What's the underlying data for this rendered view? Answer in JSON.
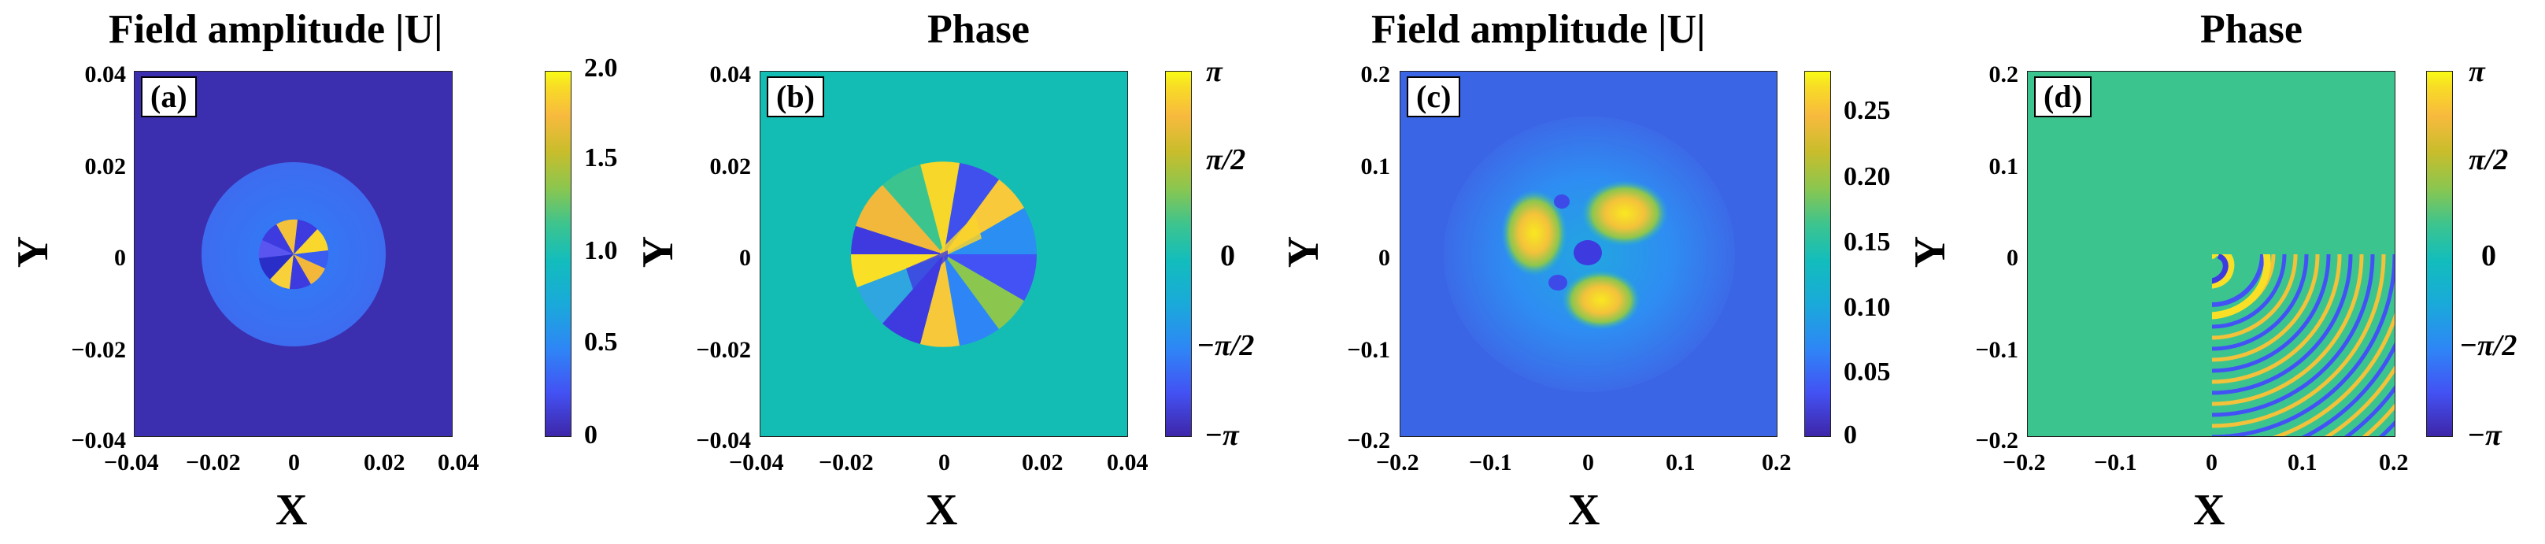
{
  "chart_data": [
    {
      "type": "heatmap",
      "panel": "(a)",
      "title": "Field amplitude |U|",
      "xlabel": "X",
      "ylabel": "Y",
      "xlim": [
        -0.04,
        0.04
      ],
      "ylim": [
        -0.04,
        0.04
      ],
      "xticks": [
        "−0.04",
        "−0.02",
        "0",
        "0.02",
        "0.04"
      ],
      "yticks": [
        "0.04",
        "0.02",
        "0",
        "−0.02",
        "−0.04"
      ],
      "colorbar": {
        "min": 0,
        "max": 2.0,
        "ticks": [
          "2.0",
          "1.5",
          "1.0",
          "0.5",
          "0"
        ]
      }
    },
    {
      "type": "heatmap",
      "panel": "(b)",
      "title": "Phase",
      "xlabel": "X",
      "ylabel": "Y",
      "xlim": [
        -0.04,
        0.04
      ],
      "ylim": [
        -0.04,
        0.04
      ],
      "xticks": [
        "−0.04",
        "−0.02",
        "0",
        "0.02",
        "0.04"
      ],
      "yticks": [
        "0.04",
        "0.02",
        "0",
        "−0.02",
        "−0.04"
      ],
      "colorbar": {
        "min": "-π",
        "max": "π",
        "ticks": [
          "π",
          "π/2",
          "0",
          "−π/2",
          "−π"
        ]
      }
    },
    {
      "type": "heatmap",
      "panel": "(c)",
      "title": "Field amplitude |U|",
      "xlabel": "X",
      "ylabel": "Y",
      "xlim": [
        -0.2,
        0.2
      ],
      "ylim": [
        -0.2,
        0.2
      ],
      "xticks": [
        "−0.2",
        "−0.1",
        "0",
        "0.1",
        "0.2"
      ],
      "yticks": [
        "0.2",
        "0.1",
        "0",
        "−0.1",
        "−0.2"
      ],
      "colorbar": {
        "min": 0,
        "max": 0.28,
        "ticks": [
          "0.25",
          "0.20",
          "0.15",
          "0.10",
          "0.05",
          "0"
        ]
      }
    },
    {
      "type": "heatmap",
      "panel": "(d)",
      "title": "Phase",
      "xlabel": "X",
      "ylabel": "Y",
      "xlim": [
        -0.2,
        0.2
      ],
      "ylim": [
        -0.2,
        0.2
      ],
      "xticks": [
        "−0.2",
        "−0.1",
        "0",
        "0.1",
        "0.2"
      ],
      "yticks": [
        "0.2",
        "0.1",
        "0",
        "−0.1",
        "−0.2"
      ],
      "colorbar": {
        "min": "-π",
        "max": "π",
        "ticks": [
          "π",
          "π/2",
          "0",
          "−π/2",
          "−π"
        ]
      }
    }
  ]
}
